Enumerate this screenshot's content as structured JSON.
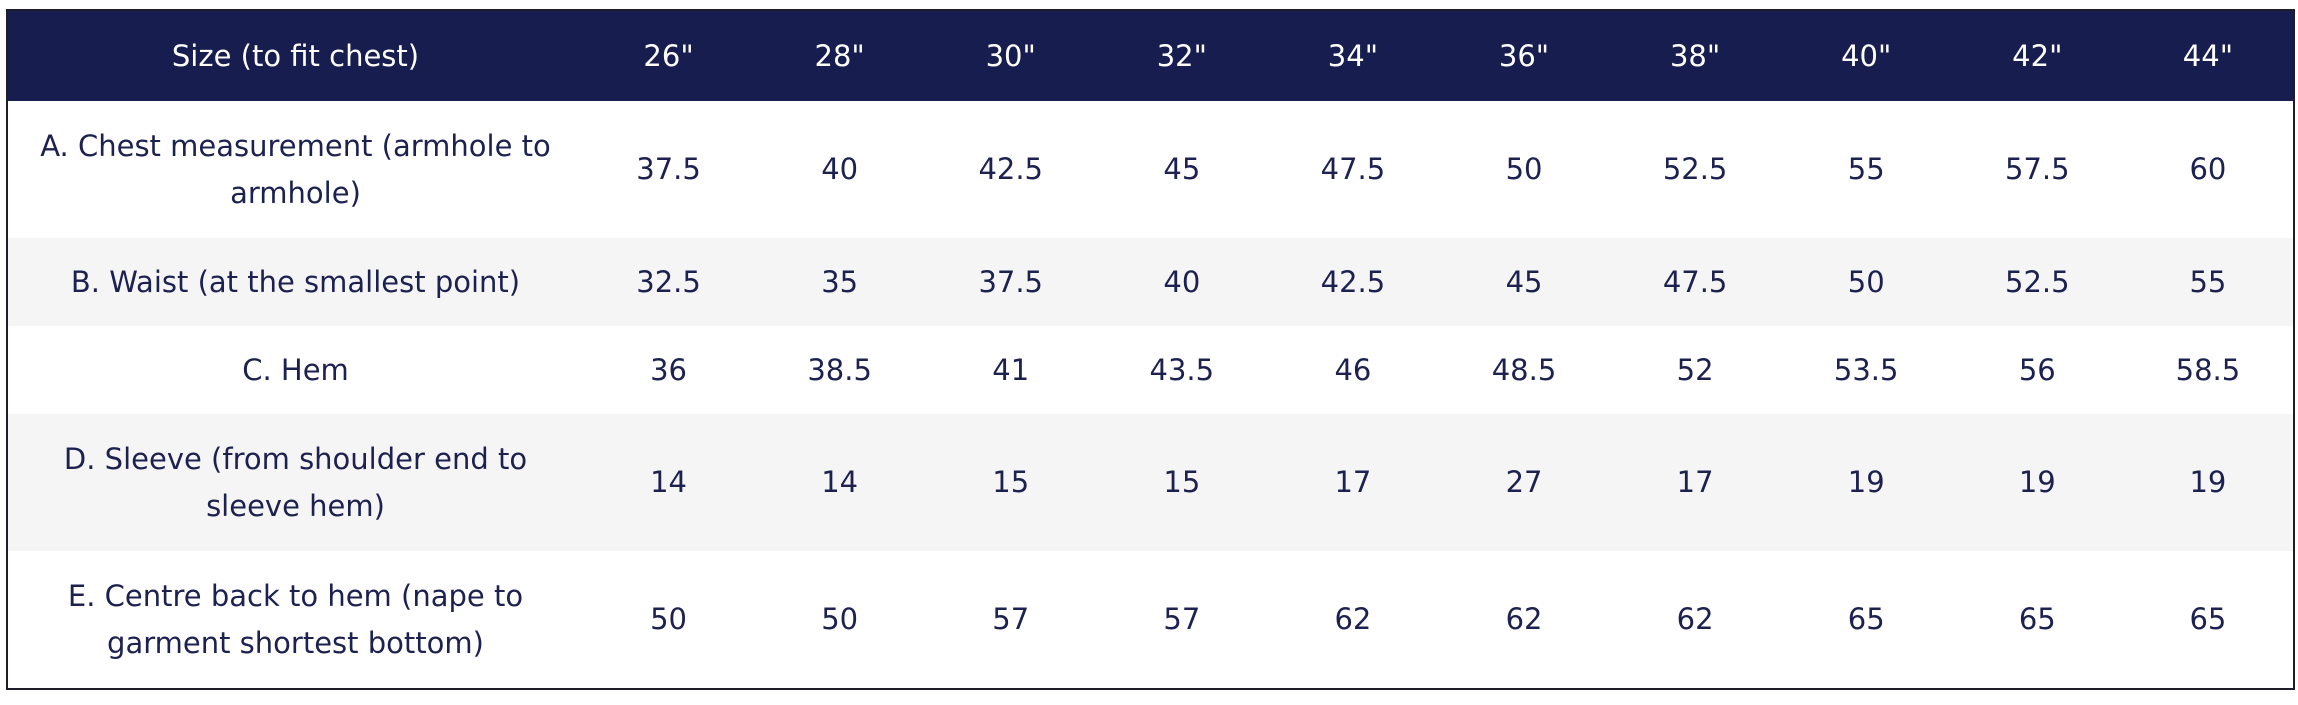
{
  "table": {
    "header": [
      "Size (to fit chest)",
      "26\"",
      "28\"",
      "30\"",
      "32\"",
      "34\"",
      "36\"",
      "38\"",
      "40\"",
      "42\"",
      "44\""
    ],
    "rows": [
      {
        "label": "A. Chest measurement (armhole to armhole)",
        "values": [
          37.5,
          40,
          42.5,
          45,
          47.5,
          50,
          52.5,
          55,
          57.5,
          60
        ]
      },
      {
        "label": "B. Waist (at the smallest point)",
        "values": [
          32.5,
          35,
          37.5,
          40,
          42.5,
          45,
          47.5,
          50,
          52.5,
          55
        ]
      },
      {
        "label": "C. Hem",
        "values": [
          36,
          38.5,
          41,
          43.5,
          46,
          48.5,
          52,
          53.5,
          56,
          58.5
        ]
      },
      {
        "label": "D. Sleeve (from shoulder end to sleeve hem)",
        "values": [
          14,
          14,
          15,
          15,
          17,
          27,
          17,
          19,
          19,
          19
        ]
      },
      {
        "label": "E. Centre back to hem (nape to garment shortest bottom)",
        "values": [
          50,
          50,
          57,
          57,
          62,
          62,
          62,
          65,
          65,
          65
        ]
      }
    ]
  }
}
